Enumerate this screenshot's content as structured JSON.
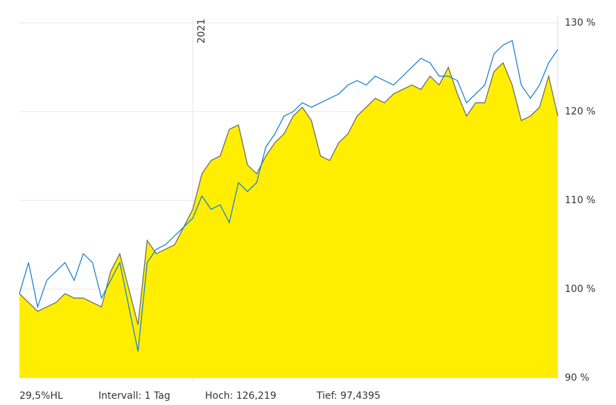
{
  "chart_data": {
    "type": "line",
    "ylim": [
      90,
      130
    ],
    "yticks": [
      {
        "value": 90,
        "label": "90 %"
      },
      {
        "value": 100,
        "label": "100 %"
      },
      {
        "value": 110,
        "label": "110 %"
      },
      {
        "value": 120,
        "label": "120 %"
      },
      {
        "value": 130,
        "label": "130 %"
      }
    ],
    "grid": true,
    "categories": [
      null,
      null,
      null,
      null,
      null,
      null,
      null,
      null,
      null,
      null,
      null,
      null,
      null,
      null,
      null,
      null,
      null,
      null,
      null,
      "2021",
      null,
      null,
      null,
      null,
      null,
      null,
      null,
      null,
      null,
      null,
      null,
      null,
      null,
      null,
      null,
      null,
      null,
      null,
      null,
      null,
      null,
      null,
      null,
      null,
      null,
      null,
      null,
      null,
      null,
      null,
      null,
      null,
      null,
      null,
      null,
      null,
      null,
      null,
      null,
      null
    ],
    "series": [
      {
        "color": "#6b6b6b",
        "fill": "#ffee00",
        "values": [
          99.5,
          98.5,
          97.5,
          98,
          98.5,
          99.5,
          99,
          99,
          98.5,
          98,
          102,
          104,
          100,
          96,
          105.5,
          104,
          104.5,
          105,
          107,
          109,
          113,
          114.5,
          115,
          118,
          118.5,
          114,
          113,
          115,
          116.5,
          117.5,
          119.5,
          120.5,
          119,
          115,
          114.5,
          116.5,
          117.5,
          119.5,
          120.5,
          121.5,
          121,
          122,
          122.5,
          123,
          122.5,
          124,
          123,
          125,
          122,
          119.5,
          121,
          121,
          124.5,
          125.5,
          123,
          119,
          119.5,
          120.5,
          124,
          119.5
        ]
      },
      {
        "color": "#1a7fd4",
        "values": [
          99.5,
          103,
          98,
          101,
          102,
          103,
          101,
          104,
          103,
          99,
          101,
          103,
          98,
          93,
          103,
          104.5,
          105,
          106,
          107,
          108,
          110.5,
          109,
          109.5,
          107.5,
          112,
          111,
          112,
          116,
          117.5,
          119.5,
          120,
          121,
          120.5,
          121,
          121.5,
          122,
          123,
          123.5,
          123,
          124,
          123.5,
          123,
          124,
          125,
          126,
          125.5,
          124,
          124,
          123.5,
          121,
          122,
          123,
          126.5,
          127.5,
          128,
          123,
          121.5,
          123,
          125.5,
          127
        ]
      }
    ],
    "footer": [
      "29,5%HL",
      "Intervall: 1 Tag",
      "Hoch: 126,219",
      "Tief: 97,4395"
    ]
  }
}
